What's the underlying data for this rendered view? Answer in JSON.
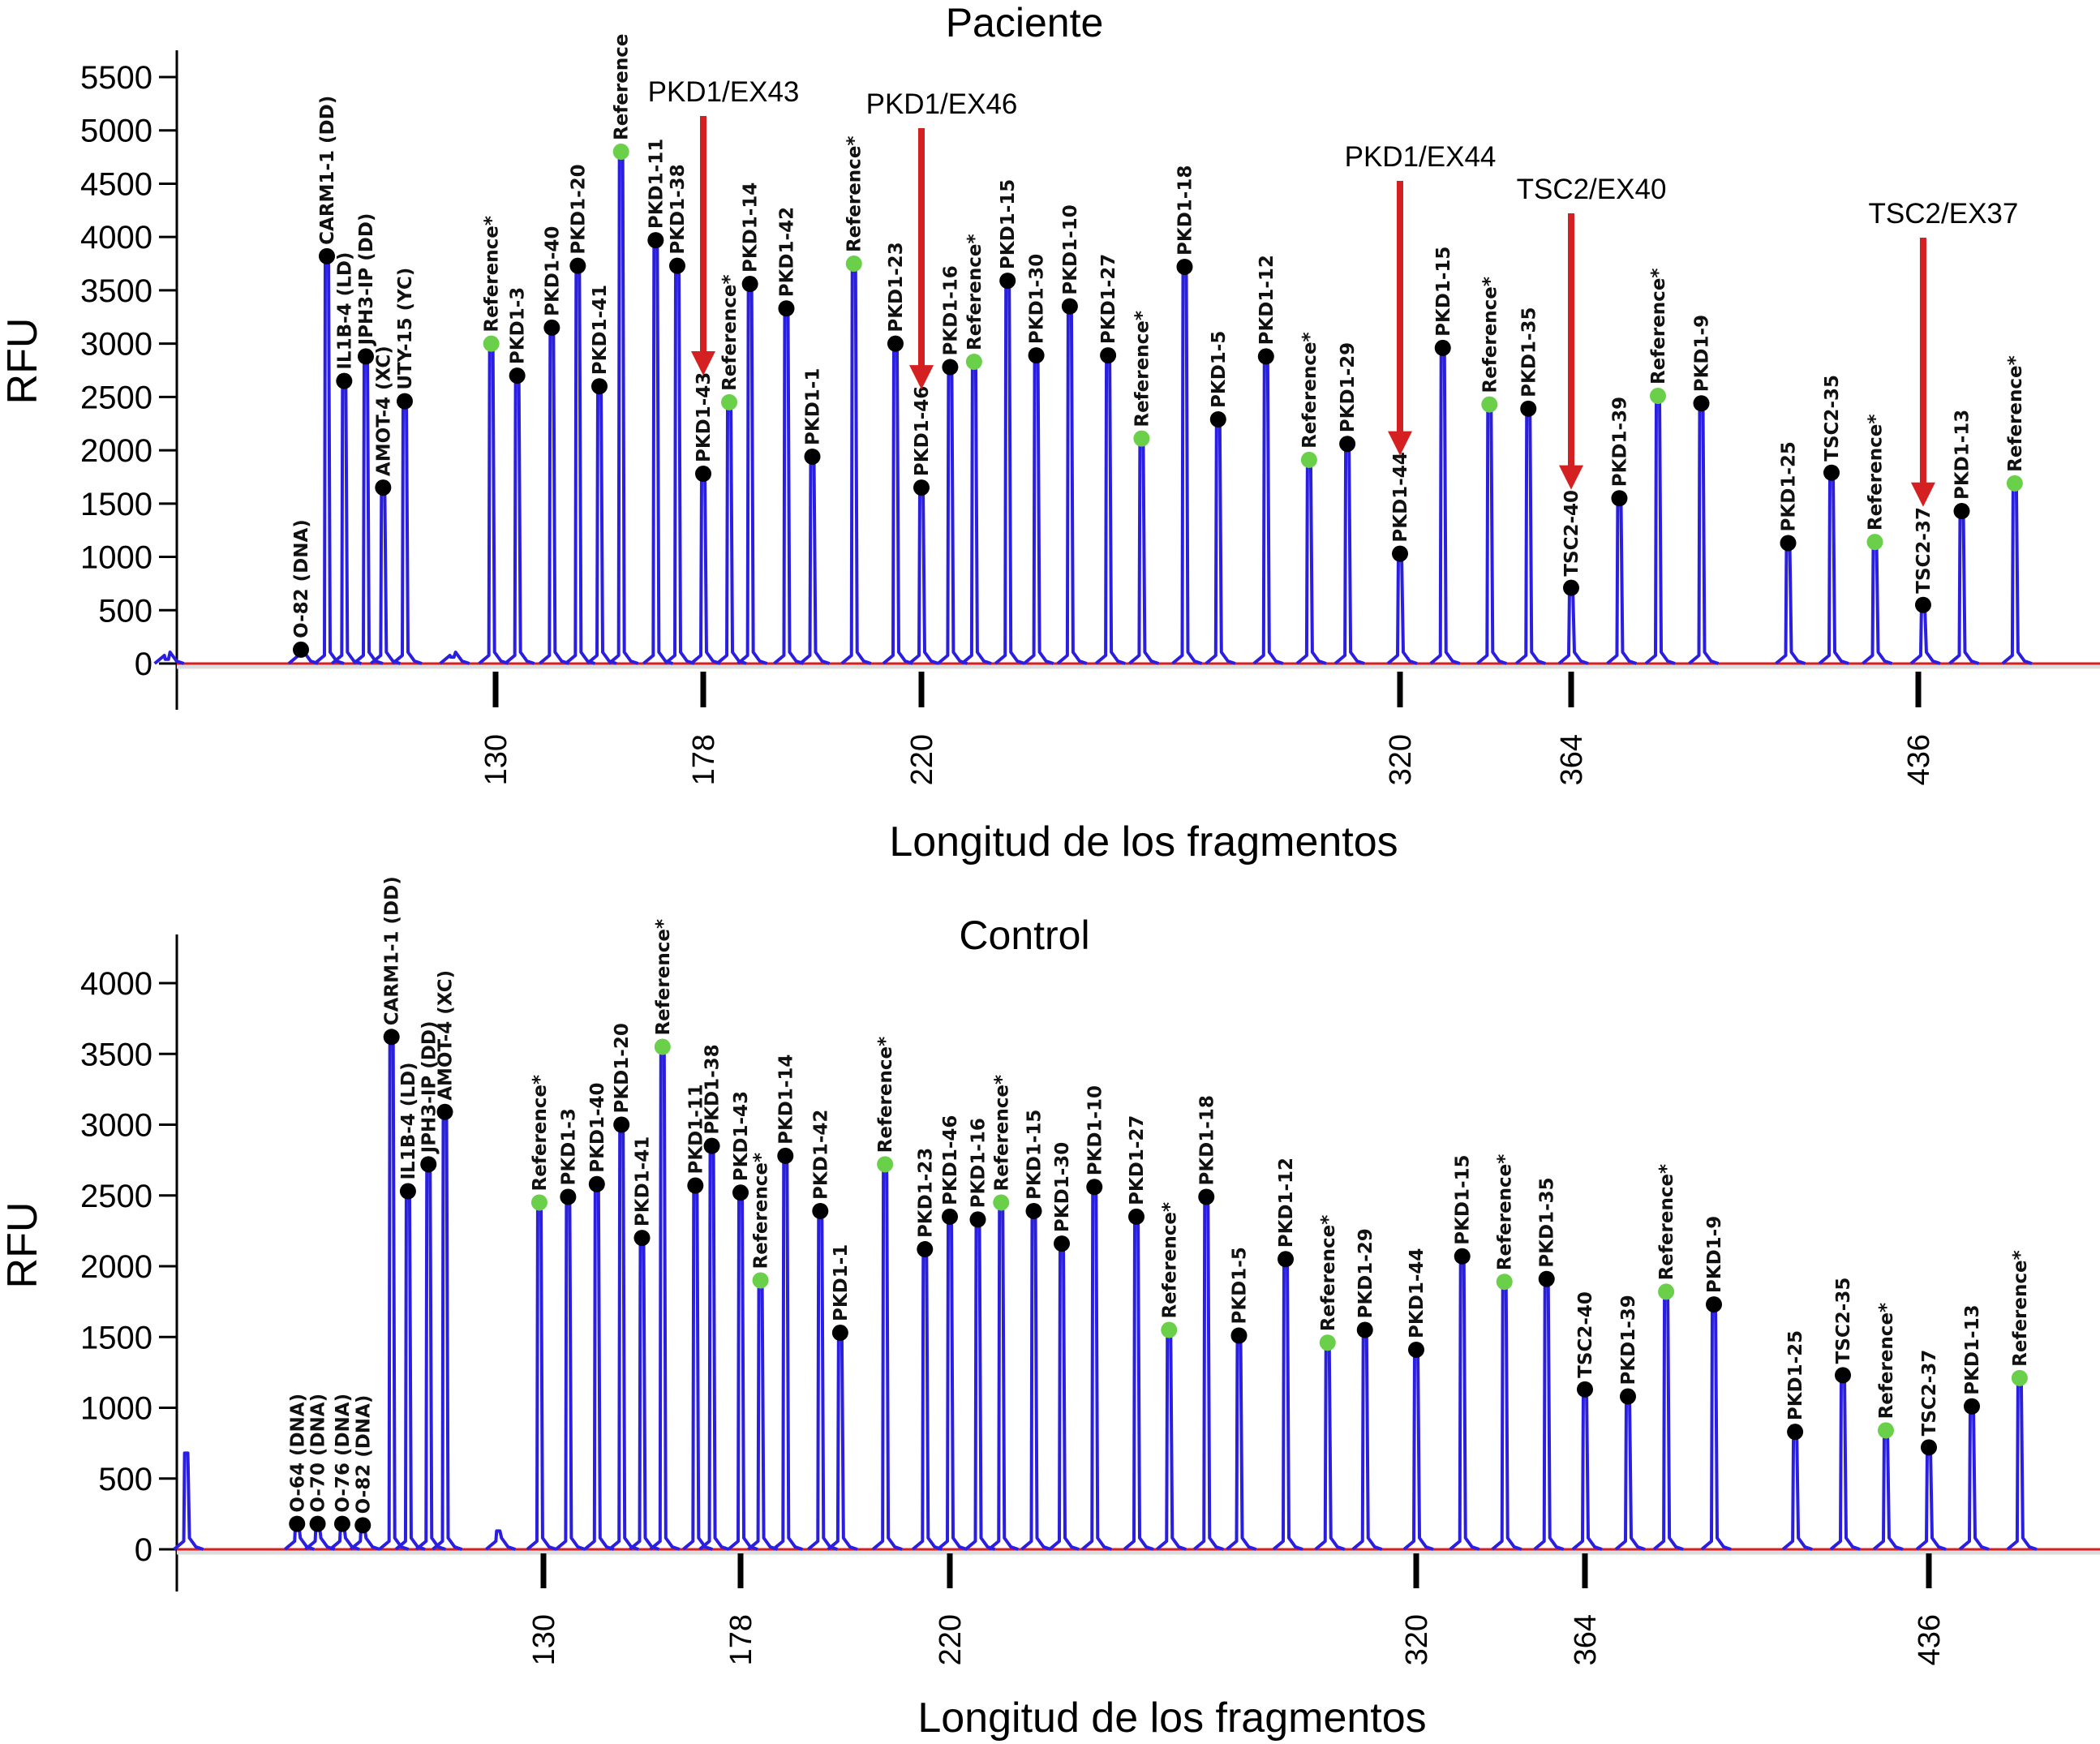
{
  "chart_data": [
    {
      "type": "bar",
      "subtype": "electropherogram",
      "title": "Paciente",
      "xlabel": "Longitud de los fragmentos",
      "ylabel": "RFU",
      "ylim": [
        0,
        5700
      ],
      "yticks": [
        0,
        500,
        1000,
        1500,
        2000,
        2500,
        3000,
        3500,
        4000,
        4500,
        5000,
        5500
      ],
      "xticks": [
        130,
        178,
        220,
        320,
        364,
        436
      ],
      "grid": false,
      "colors": {
        "trace": "#2a1fe0",
        "baseline": "#d42020",
        "probe_marker": "#000000",
        "reference_marker": "#6ad04a",
        "arrow": "#d42020"
      },
      "peaks": [
        {
          "label": "",
          "size": 54,
          "rfu": 40,
          "kind": "none"
        },
        {
          "label": "O-82 (DNA)",
          "size": 85,
          "rfu": 130,
          "kind": "probe"
        },
        {
          "label": "CARM1-1 (DD)",
          "size": 91,
          "rfu": 3820,
          "kind": "probe"
        },
        {
          "label": "IL1B-4 (LD)",
          "size": 95,
          "rfu": 2650,
          "kind": "probe"
        },
        {
          "label": "JPH3-IP (DD)",
          "size": 100,
          "rfu": 2880,
          "kind": "probe"
        },
        {
          "label": "AMOT-4 (XC)",
          "size": 104,
          "rfu": 1650,
          "kind": "probe"
        },
        {
          "label": "UTY-15 (YC)",
          "size": 109,
          "rfu": 2460,
          "kind": "probe"
        },
        {
          "label": "",
          "size": 120,
          "rfu": 60,
          "kind": "none"
        },
        {
          "label": "Reference*",
          "size": 129,
          "rfu": 3000,
          "kind": "reference"
        },
        {
          "label": "PKD1-3",
          "size": 135,
          "rfu": 2700,
          "kind": "probe"
        },
        {
          "label": "PKD1-40",
          "size": 143,
          "rfu": 3150,
          "kind": "probe"
        },
        {
          "label": "PKD1-20",
          "size": 149,
          "rfu": 3730,
          "kind": "probe"
        },
        {
          "label": "PKD1-41",
          "size": 154,
          "rfu": 2600,
          "kind": "probe"
        },
        {
          "label": "Reference",
          "size": 159,
          "rfu": 4800,
          "kind": "reference"
        },
        {
          "label": "PKD1-11",
          "size": 167,
          "rfu": 3970,
          "kind": "probe"
        },
        {
          "label": "PKD1-38",
          "size": 172,
          "rfu": 3730,
          "kind": "probe"
        },
        {
          "label": "PKD1-43",
          "size": 178,
          "rfu": 1780,
          "kind": "probe"
        },
        {
          "label": "Reference*",
          "size": 183,
          "rfu": 2450,
          "kind": "reference"
        },
        {
          "label": "PKD1-14",
          "size": 187,
          "rfu": 3560,
          "kind": "probe"
        },
        {
          "label": "PKD1-42",
          "size": 194,
          "rfu": 3330,
          "kind": "probe"
        },
        {
          "label": "PKD1-1",
          "size": 199,
          "rfu": 1940,
          "kind": "probe"
        },
        {
          "label": "Reference*",
          "size": 207,
          "rfu": 3750,
          "kind": "reference"
        },
        {
          "label": "PKD1-23",
          "size": 215,
          "rfu": 3000,
          "kind": "probe"
        },
        {
          "label": "PKD1-46",
          "size": 220,
          "rfu": 1650,
          "kind": "probe"
        },
        {
          "label": "PKD1-16",
          "size": 226,
          "rfu": 2780,
          "kind": "probe"
        },
        {
          "label": "Reference*",
          "size": 231,
          "rfu": 2830,
          "kind": "reference"
        },
        {
          "label": "PKD1-15",
          "size": 238,
          "rfu": 3590,
          "kind": "probe"
        },
        {
          "label": "PKD1-30",
          "size": 244,
          "rfu": 2890,
          "kind": "probe"
        },
        {
          "label": "PKD1-10",
          "size": 251,
          "rfu": 3350,
          "kind": "probe"
        },
        {
          "label": "PKD1-27",
          "size": 259,
          "rfu": 2890,
          "kind": "probe"
        },
        {
          "label": "Reference*",
          "size": 266,
          "rfu": 2110,
          "kind": "reference"
        },
        {
          "label": "PKD1-18",
          "size": 275,
          "rfu": 3720,
          "kind": "probe"
        },
        {
          "label": "PKD1-5",
          "size": 282,
          "rfu": 2290,
          "kind": "probe"
        },
        {
          "label": "PKD1-12",
          "size": 292,
          "rfu": 2880,
          "kind": "probe"
        },
        {
          "label": "Reference*",
          "size": 301,
          "rfu": 1910,
          "kind": "reference"
        },
        {
          "label": "PKD1-29",
          "size": 309,
          "rfu": 2060,
          "kind": "probe"
        },
        {
          "label": "PKD1-44",
          "size": 320,
          "rfu": 1030,
          "kind": "probe"
        },
        {
          "label": "PKD1-15",
          "size": 331,
          "rfu": 2960,
          "kind": "probe"
        },
        {
          "label": "Reference*",
          "size": 343,
          "rfu": 2430,
          "kind": "reference"
        },
        {
          "label": "PKD1-35",
          "size": 353,
          "rfu": 2390,
          "kind": "probe"
        },
        {
          "label": "TSC2-40",
          "size": 364,
          "rfu": 710,
          "kind": "probe"
        },
        {
          "label": "PKD1-39",
          "size": 374,
          "rfu": 1550,
          "kind": "probe"
        },
        {
          "label": "Reference*",
          "size": 382,
          "rfu": 2510,
          "kind": "reference"
        },
        {
          "label": "PKD1-9",
          "size": 391,
          "rfu": 2440,
          "kind": "probe"
        },
        {
          "label": "PKD1-25",
          "size": 409,
          "rfu": 1130,
          "kind": "probe"
        },
        {
          "label": "TSC2-35",
          "size": 418,
          "rfu": 1790,
          "kind": "probe"
        },
        {
          "label": "Reference*",
          "size": 427,
          "rfu": 1140,
          "kind": "reference"
        },
        {
          "label": "TSC2-37",
          "size": 437,
          "rfu": 550,
          "kind": "probe"
        },
        {
          "label": "PKD1-13",
          "size": 445,
          "rfu": 1430,
          "kind": "probe"
        },
        {
          "label": "Reference*",
          "size": 456,
          "rfu": 1690,
          "kind": "reference"
        }
      ],
      "annotations": [
        {
          "text": "PKD1/EX43",
          "target_size": 178
        },
        {
          "text": "PKD1/EX46",
          "target_size": 220
        },
        {
          "text": "PKD1/EX44",
          "target_size": 320
        },
        {
          "text": "TSC2/EX40",
          "target_size": 364
        },
        {
          "text": "TSC2/EX37",
          "target_size": 437
        }
      ]
    },
    {
      "type": "bar",
      "subtype": "electropherogram",
      "title": "Control",
      "xlabel": "Longitud de los fragmentos",
      "ylabel": "RFU",
      "ylim": [
        0,
        4400
      ],
      "yticks": [
        0,
        500,
        1000,
        1500,
        2000,
        2500,
        3000,
        3500,
        4000
      ],
      "xticks": [
        130,
        178,
        220,
        320,
        364,
        436
      ],
      "grid": false,
      "colors": {
        "trace": "#2a1fe0",
        "baseline": "#d42020",
        "probe_marker": "#000000",
        "reference_marker": "#6ad04a"
      },
      "peaks": [
        {
          "label": "",
          "size": 43,
          "rfu": 680,
          "kind": "none"
        },
        {
          "label": "O-64 (DNA)",
          "size": 70,
          "rfu": 180,
          "kind": "probe"
        },
        {
          "label": "O-70 (DNA)",
          "size": 75,
          "rfu": 180,
          "kind": "probe"
        },
        {
          "label": "O-76 (DNA)",
          "size": 81,
          "rfu": 180,
          "kind": "probe"
        },
        {
          "label": "O-82 (DNA)",
          "size": 86,
          "rfu": 170,
          "kind": "probe"
        },
        {
          "label": "CARM1-1 (DD)",
          "size": 93,
          "rfu": 3620,
          "kind": "probe"
        },
        {
          "label": "IL1B-4 (LD)",
          "size": 97,
          "rfu": 2530,
          "kind": "probe"
        },
        {
          "label": "JPH3-IP (DD)",
          "size": 102,
          "rfu": 2720,
          "kind": "probe"
        },
        {
          "label": "AMOT-4 (XC)",
          "size": 106,
          "rfu": 3090,
          "kind": "probe"
        },
        {
          "label": "",
          "size": 119,
          "rfu": 130,
          "kind": "none"
        },
        {
          "label": "Reference*",
          "size": 129,
          "rfu": 2450,
          "kind": "reference"
        },
        {
          "label": "PKD1-3",
          "size": 136,
          "rfu": 2490,
          "kind": "probe"
        },
        {
          "label": "PKD1-40",
          "size": 143,
          "rfu": 2580,
          "kind": "probe"
        },
        {
          "label": "PKD1-20",
          "size": 149,
          "rfu": 3000,
          "kind": "probe"
        },
        {
          "label": "PKD1-41",
          "size": 154,
          "rfu": 2200,
          "kind": "probe"
        },
        {
          "label": "Reference*",
          "size": 159,
          "rfu": 3550,
          "kind": "reference"
        },
        {
          "label": "PKD1-11",
          "size": 167,
          "rfu": 2570,
          "kind": "probe"
        },
        {
          "label": "PKD1-38",
          "size": 171,
          "rfu": 2850,
          "kind": "probe"
        },
        {
          "label": "PKD1-43",
          "size": 178,
          "rfu": 2520,
          "kind": "probe"
        },
        {
          "label": "Reference*",
          "size": 182,
          "rfu": 1900,
          "kind": "reference"
        },
        {
          "label": "PKD1-14",
          "size": 187,
          "rfu": 2780,
          "kind": "probe"
        },
        {
          "label": "PKD1-42",
          "size": 194,
          "rfu": 2390,
          "kind": "probe"
        },
        {
          "label": "PKD1-1",
          "size": 198,
          "rfu": 1530,
          "kind": "probe"
        },
        {
          "label": "Reference*",
          "size": 207,
          "rfu": 2720,
          "kind": "reference"
        },
        {
          "label": "PKD1-23",
          "size": 215,
          "rfu": 2120,
          "kind": "probe"
        },
        {
          "label": "PKD1-46",
          "size": 220,
          "rfu": 2350,
          "kind": "probe"
        },
        {
          "label": "PKD1-16",
          "size": 226,
          "rfu": 2330,
          "kind": "probe"
        },
        {
          "label": "Reference*",
          "size": 231,
          "rfu": 2450,
          "kind": "reference"
        },
        {
          "label": "PKD1-15",
          "size": 238,
          "rfu": 2390,
          "kind": "probe"
        },
        {
          "label": "PKD1-30",
          "size": 244,
          "rfu": 2160,
          "kind": "probe"
        },
        {
          "label": "PKD1-10",
          "size": 251,
          "rfu": 2560,
          "kind": "probe"
        },
        {
          "label": "PKD1-27",
          "size": 260,
          "rfu": 2350,
          "kind": "probe"
        },
        {
          "label": "Reference*",
          "size": 267,
          "rfu": 1550,
          "kind": "reference"
        },
        {
          "label": "PKD1-18",
          "size": 275,
          "rfu": 2490,
          "kind": "probe"
        },
        {
          "label": "PKD1-5",
          "size": 282,
          "rfu": 1510,
          "kind": "probe"
        },
        {
          "label": "PKD1-12",
          "size": 292,
          "rfu": 2050,
          "kind": "probe"
        },
        {
          "label": "Reference*",
          "size": 301,
          "rfu": 1460,
          "kind": "reference"
        },
        {
          "label": "PKD1-29",
          "size": 309,
          "rfu": 1550,
          "kind": "probe"
        },
        {
          "label": "PKD1-44",
          "size": 320,
          "rfu": 1410,
          "kind": "probe"
        },
        {
          "label": "PKD1-15",
          "size": 332,
          "rfu": 2070,
          "kind": "probe"
        },
        {
          "label": "Reference*",
          "size": 343,
          "rfu": 1890,
          "kind": "reference"
        },
        {
          "label": "PKD1-35",
          "size": 354,
          "rfu": 1910,
          "kind": "probe"
        },
        {
          "label": "TSC2-40",
          "size": 364,
          "rfu": 1130,
          "kind": "probe"
        },
        {
          "label": "PKD1-39",
          "size": 373,
          "rfu": 1080,
          "kind": "probe"
        },
        {
          "label": "Reference*",
          "size": 381,
          "rfu": 1820,
          "kind": "reference"
        },
        {
          "label": "PKD1-9",
          "size": 391,
          "rfu": 1730,
          "kind": "probe"
        },
        {
          "label": "PKD1-25",
          "size": 408,
          "rfu": 830,
          "kind": "probe"
        },
        {
          "label": "TSC2-35",
          "size": 418,
          "rfu": 1230,
          "kind": "probe"
        },
        {
          "label": "Reference*",
          "size": 427,
          "rfu": 840,
          "kind": "reference"
        },
        {
          "label": "TSC2-37",
          "size": 436,
          "rfu": 720,
          "kind": "probe"
        },
        {
          "label": "PKD1-13",
          "size": 445,
          "rfu": 1010,
          "kind": "probe"
        },
        {
          "label": "Reference*",
          "size": 455,
          "rfu": 1210,
          "kind": "reference"
        }
      ],
      "annotations": []
    }
  ]
}
